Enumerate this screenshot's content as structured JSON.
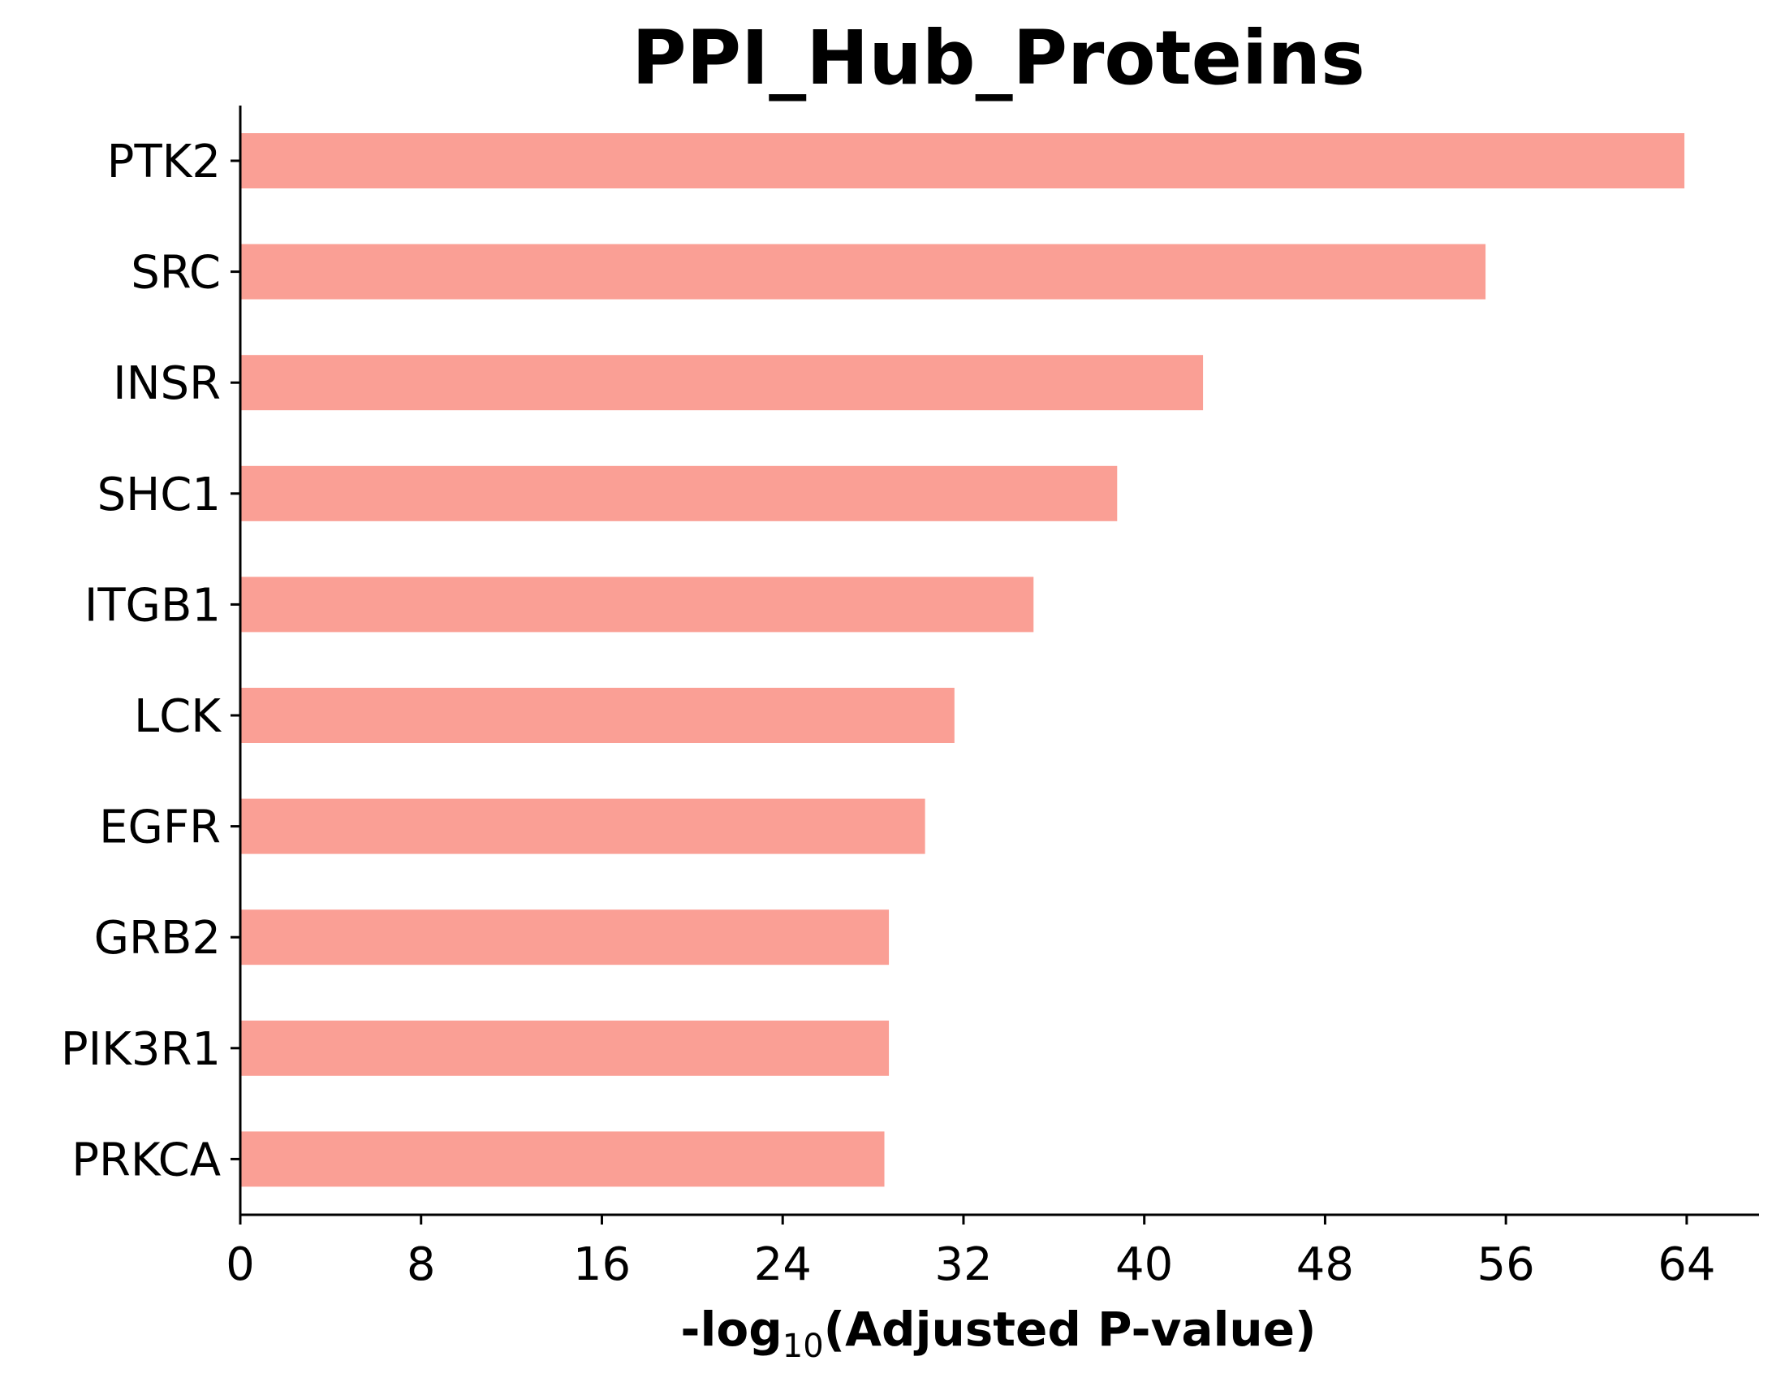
{
  "chart_data": {
    "type": "bar",
    "orientation": "horizontal",
    "title": "PPI_Hub_Proteins",
    "xlabel_prefix": "-log",
    "xlabel_sub": "10",
    "xlabel_suffix": "(Adjusted P-value)",
    "ylabel": "",
    "categories": [
      "PTK2",
      "SRC",
      "INSR",
      "SHC1",
      "ITGB1",
      "LCK",
      "EGFR",
      "GRB2",
      "PIK3R1",
      "PRKCA"
    ],
    "values": [
      63.9,
      55.1,
      42.6,
      38.8,
      35.1,
      31.6,
      30.3,
      28.7,
      28.7,
      28.5
    ],
    "xlim": [
      0,
      67.2
    ],
    "xticks": [
      0,
      8,
      16,
      24,
      32,
      40,
      48,
      56,
      64
    ],
    "bar_color": "#fa9f95",
    "grid": false,
    "legend": "none"
  }
}
